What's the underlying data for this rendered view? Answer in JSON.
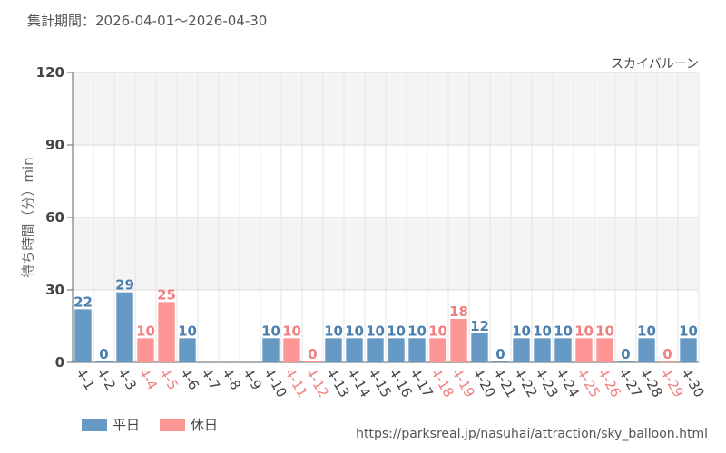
{
  "header": {
    "period_label": "集計期間：2026-04-01～2026-04-30"
  },
  "legend": {
    "weekday_label": "平日",
    "holiday_label": "休日"
  },
  "colors": {
    "weekday": "#6699c4",
    "weekday_text": "#4a7fb0",
    "holiday": "#ff9696",
    "holiday_text": "#f08080",
    "band": "#f4f4f4"
  },
  "footer": {
    "source_url": "https://parksreal.jp/nasuhai/attraction/sky_balloon.html"
  },
  "chart_data": {
    "type": "bar",
    "title": "スカイバルーン",
    "ylabel": "待ち時間（分）min",
    "xlabel": "",
    "ylim": [
      0,
      120
    ],
    "yticks": [
      0,
      30,
      60,
      90,
      120
    ],
    "grid": true,
    "legend_position": "bottom-left",
    "categories": [
      "4-1",
      "4-2",
      "4-3",
      "4-4",
      "4-5",
      "4-6",
      "4-7",
      "4-8",
      "4-9",
      "4-10",
      "4-11",
      "4-12",
      "4-13",
      "4-14",
      "4-15",
      "4-16",
      "4-17",
      "4-18",
      "4-19",
      "4-20",
      "4-21",
      "4-22",
      "4-23",
      "4-24",
      "4-25",
      "4-26",
      "4-27",
      "4-28",
      "4-29",
      "4-30"
    ],
    "day_type": [
      "weekday",
      "weekday",
      "weekday",
      "holiday",
      "holiday",
      "weekday",
      "weekday",
      "weekday",
      "weekday",
      "weekday",
      "holiday",
      "holiday",
      "weekday",
      "weekday",
      "weekday",
      "weekday",
      "weekday",
      "holiday",
      "holiday",
      "weekday",
      "weekday",
      "weekday",
      "weekday",
      "weekday",
      "holiday",
      "holiday",
      "weekday",
      "weekday",
      "holiday",
      "weekday"
    ],
    "values": [
      22,
      0,
      29,
      10,
      25,
      10,
      null,
      null,
      null,
      10,
      10,
      0,
      10,
      10,
      10,
      10,
      10,
      10,
      18,
      12,
      0,
      10,
      10,
      10,
      10,
      10,
      0,
      10,
      0,
      10
    ]
  }
}
